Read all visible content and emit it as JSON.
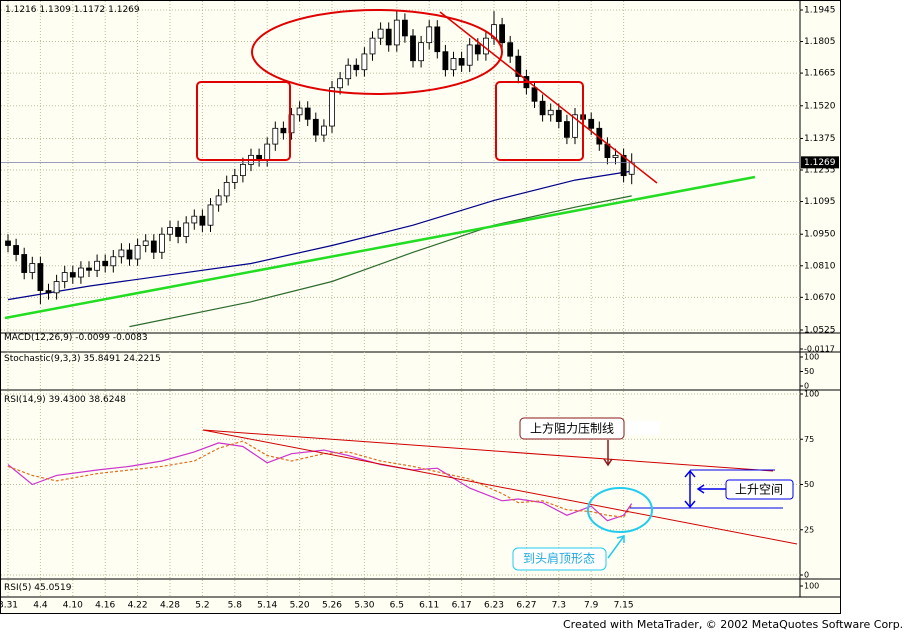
{
  "chart_data": [
    {
      "type": "candlestick",
      "open": [
        1.092,
        1.09,
        1.086,
        1.078,
        1.082,
        1.07,
        1.069,
        1.074,
        1.078,
        1.076,
        1.08,
        1.079,
        1.083,
        1.081,
        1.085,
        1.088,
        1.084,
        1.09,
        1.092,
        1.087,
        1.095,
        1.098,
        1.094,
        1.1,
        1.103,
        1.099,
        1.108,
        1.112,
        1.118,
        1.121,
        1.126,
        1.13,
        1.128,
        1.135,
        1.142,
        1.14,
        1.148,
        1.151,
        1.146,
        1.139,
        1.143,
        1.16,
        1.164,
        1.17,
        1.168,
        1.175,
        1.182,
        1.186,
        1.179,
        1.19,
        1.183,
        1.172,
        1.18,
        1.187,
        1.176,
        1.168,
        1.173,
        1.17,
        1.179,
        1.175,
        1.182,
        1.188,
        1.18,
        1.174,
        1.165,
        1.16,
        1.154,
        1.148,
        1.15,
        1.145,
        1.138,
        1.148,
        1.146,
        1.142,
        1.135,
        1.129,
        1.13,
        1.1216
      ],
      "high": [
        1.095,
        1.093,
        1.089,
        1.085,
        1.085,
        1.073,
        1.077,
        1.081,
        1.081,
        1.083,
        1.083,
        1.086,
        1.086,
        1.088,
        1.091,
        1.091,
        1.093,
        1.095,
        1.095,
        1.098,
        1.101,
        1.101,
        1.103,
        1.106,
        1.106,
        1.111,
        1.115,
        1.121,
        1.124,
        1.129,
        1.133,
        1.133,
        1.138,
        1.145,
        1.145,
        1.151,
        1.154,
        1.154,
        1.149,
        1.146,
        1.163,
        1.167,
        1.173,
        1.173,
        1.178,
        1.185,
        1.189,
        1.189,
        1.194,
        1.193,
        1.186,
        1.183,
        1.19,
        1.19,
        1.179,
        1.176,
        1.176,
        1.182,
        1.182,
        1.185,
        1.194,
        1.191,
        1.183,
        1.177,
        1.168,
        1.163,
        1.157,
        1.153,
        1.153,
        1.148,
        1.151,
        1.151,
        1.149,
        1.145,
        1.138,
        1.133,
        1.133,
        1.1309
      ],
      "low": [
        1.087,
        1.083,
        1.075,
        1.075,
        1.064,
        1.066,
        1.066,
        1.071,
        1.073,
        1.073,
        1.076,
        1.076,
        1.078,
        1.078,
        1.082,
        1.081,
        1.081,
        1.087,
        1.084,
        1.084,
        1.092,
        1.091,
        1.091,
        1.097,
        1.096,
        1.096,
        1.105,
        1.109,
        1.115,
        1.118,
        1.123,
        1.125,
        1.125,
        1.132,
        1.137,
        1.137,
        1.145,
        1.143,
        1.136,
        1.136,
        1.14,
        1.157,
        1.161,
        1.165,
        1.165,
        1.172,
        1.179,
        1.176,
        1.176,
        1.18,
        1.169,
        1.169,
        1.177,
        1.173,
        1.165,
        1.165,
        1.167,
        1.167,
        1.172,
        1.172,
        1.179,
        1.177,
        1.171,
        1.162,
        1.157,
        1.151,
        1.145,
        1.145,
        1.142,
        1.135,
        1.135,
        1.143,
        1.139,
        1.132,
        1.126,
        1.126,
        1.118,
        1.1172
      ],
      "close": [
        1.09,
        1.086,
        1.078,
        1.082,
        1.07,
        1.069,
        1.074,
        1.078,
        1.076,
        1.08,
        1.079,
        1.083,
        1.081,
        1.085,
        1.088,
        1.084,
        1.09,
        1.092,
        1.087,
        1.095,
        1.098,
        1.094,
        1.1,
        1.103,
        1.099,
        1.108,
        1.112,
        1.118,
        1.121,
        1.126,
        1.13,
        1.128,
        1.135,
        1.142,
        1.14,
        1.148,
        1.151,
        1.146,
        1.139,
        1.143,
        1.16,
        1.164,
        1.17,
        1.168,
        1.175,
        1.182,
        1.186,
        1.179,
        1.19,
        1.183,
        1.172,
        1.18,
        1.187,
        1.176,
        1.168,
        1.173,
        1.17,
        1.179,
        1.175,
        1.182,
        1.188,
        1.18,
        1.174,
        1.165,
        1.16,
        1.154,
        1.148,
        1.15,
        1.145,
        1.138,
        1.148,
        1.146,
        1.142,
        1.135,
        1.129,
        1.13,
        1.121,
        1.1269
      ],
      "xticks": [
        {
          "value": 0,
          "label": "3.31"
        },
        {
          "value": 4,
          "label": "4.4"
        },
        {
          "value": 8,
          "label": "4.10"
        },
        {
          "value": 12,
          "label": "4.16"
        },
        {
          "value": 16,
          "label": "4.22"
        },
        {
          "value": 20,
          "label": "4.28"
        },
        {
          "value": 24,
          "label": "5.2"
        },
        {
          "value": 28,
          "label": "5.8"
        },
        {
          "value": 32,
          "label": "5.14"
        },
        {
          "value": 36,
          "label": "5.20"
        },
        {
          "value": 40,
          "label": "5.26"
        },
        {
          "value": 44,
          "label": "5.30"
        },
        {
          "value": 48,
          "label": "6.5"
        },
        {
          "value": 52,
          "label": "6.11"
        },
        {
          "value": 56,
          "label": "6.17"
        },
        {
          "value": 60,
          "label": "6.23"
        },
        {
          "value": 64,
          "label": "6.27"
        },
        {
          "value": 68,
          "label": "7.3"
        },
        {
          "value": 72,
          "label": "7.9"
        },
        {
          "value": 76,
          "label": "7.15"
        }
      ],
      "xlim": [
        -1,
        97
      ],
      "ylim": [
        1.0525,
        1.1945
      ],
      "yticks": [
        1.1945,
        1.1805,
        1.1665,
        {
          "value": 1.152,
          "label": "1.1520"
        },
        1.1375,
        1.1235,
        1.1095,
        {
          "value": 1.095,
          "label": "1.0950"
        },
        {
          "value": 1.081,
          "label": "1.0810"
        },
        {
          "value": 1.067,
          "label": "1.0670"
        },
        1.0525
      ],
      "grid": true,
      "series": [
        {
          "color": "#00008b",
          "x": [
            0,
            10,
            20,
            30,
            40,
            50,
            60,
            70,
            77
          ],
          "values": [
            1.066,
            1.072,
            1.077,
            1.082,
            1.09,
            1.099,
            1.11,
            1.119,
            1.123
          ]
        },
        {
          "color": "#2e6b2e",
          "x": [
            15,
            30,
            40,
            50,
            60,
            70,
            77
          ],
          "values": [
            1.054,
            1.065,
            1.074,
            1.087,
            1.099,
            1.107,
            1.112
          ]
        }
      ]
    },
    {
      "type": "line",
      "title": "MACD(12,26,9)",
      "values": [
        -0.0099,
        -0.0083
      ],
      "ylim": [
        -0.0117,
        0.0237
      ],
      "yticks": [
        -0.0117
      ]
    },
    {
      "type": "line",
      "title": "Stochastic(9,3,3)",
      "values": [
        35.8491,
        24.2215
      ],
      "ylim": [
        0,
        100
      ],
      "yticks": [
        100,
        50,
        0
      ]
    },
    {
      "type": "line",
      "title": "RSI(14,9)",
      "values": [
        39.43,
        38.6248
      ],
      "value_labels": [
        "39.4300",
        "38.6248"
      ],
      "ylim": [
        0,
        100
      ],
      "yticks": [
        100,
        75,
        50,
        25,
        0
      ],
      "series": [
        {
          "color": "#cc33cc",
          "x": [
            0,
            3,
            6,
            11,
            15,
            19,
            23,
            26,
            29,
            32,
            35,
            39,
            42,
            46,
            50,
            53,
            57,
            61,
            63,
            66,
            69,
            72,
            74,
            76,
            77
          ],
          "values": [
            61,
            50,
            55,
            58,
            60,
            63,
            68,
            73,
            71,
            62,
            67,
            69,
            66,
            61,
            58,
            59,
            48,
            41,
            42,
            40,
            33,
            38,
            30,
            33,
            39.43
          ]
        },
        {
          "color": "#e07020",
          "dash": true,
          "x": [
            0,
            3,
            6,
            11,
            15,
            19,
            23,
            26,
            29,
            32,
            35,
            39,
            42,
            46,
            50,
            53,
            57,
            61,
            63,
            66,
            69,
            72,
            74,
            76,
            77
          ],
          "values": [
            60,
            55,
            52,
            56,
            58,
            60,
            63,
            70,
            74,
            66,
            63,
            67,
            68,
            63,
            60,
            57,
            53,
            45,
            40,
            41,
            36,
            35,
            33,
            32,
            38.6248
          ]
        }
      ]
    },
    {
      "type": "line",
      "title": "RSI(5)",
      "values": [
        45.0519
      ],
      "ylim": [
        0,
        100
      ],
      "yticks": [
        100
      ]
    }
  ],
  "annotations": {
    "resistance": "上方阻力压制线",
    "room": "上升空间",
    "pattern": "到头肩顶形态"
  },
  "footer": "Created with MetaTrader, © 2002 MetaQuotes Software Corp."
}
